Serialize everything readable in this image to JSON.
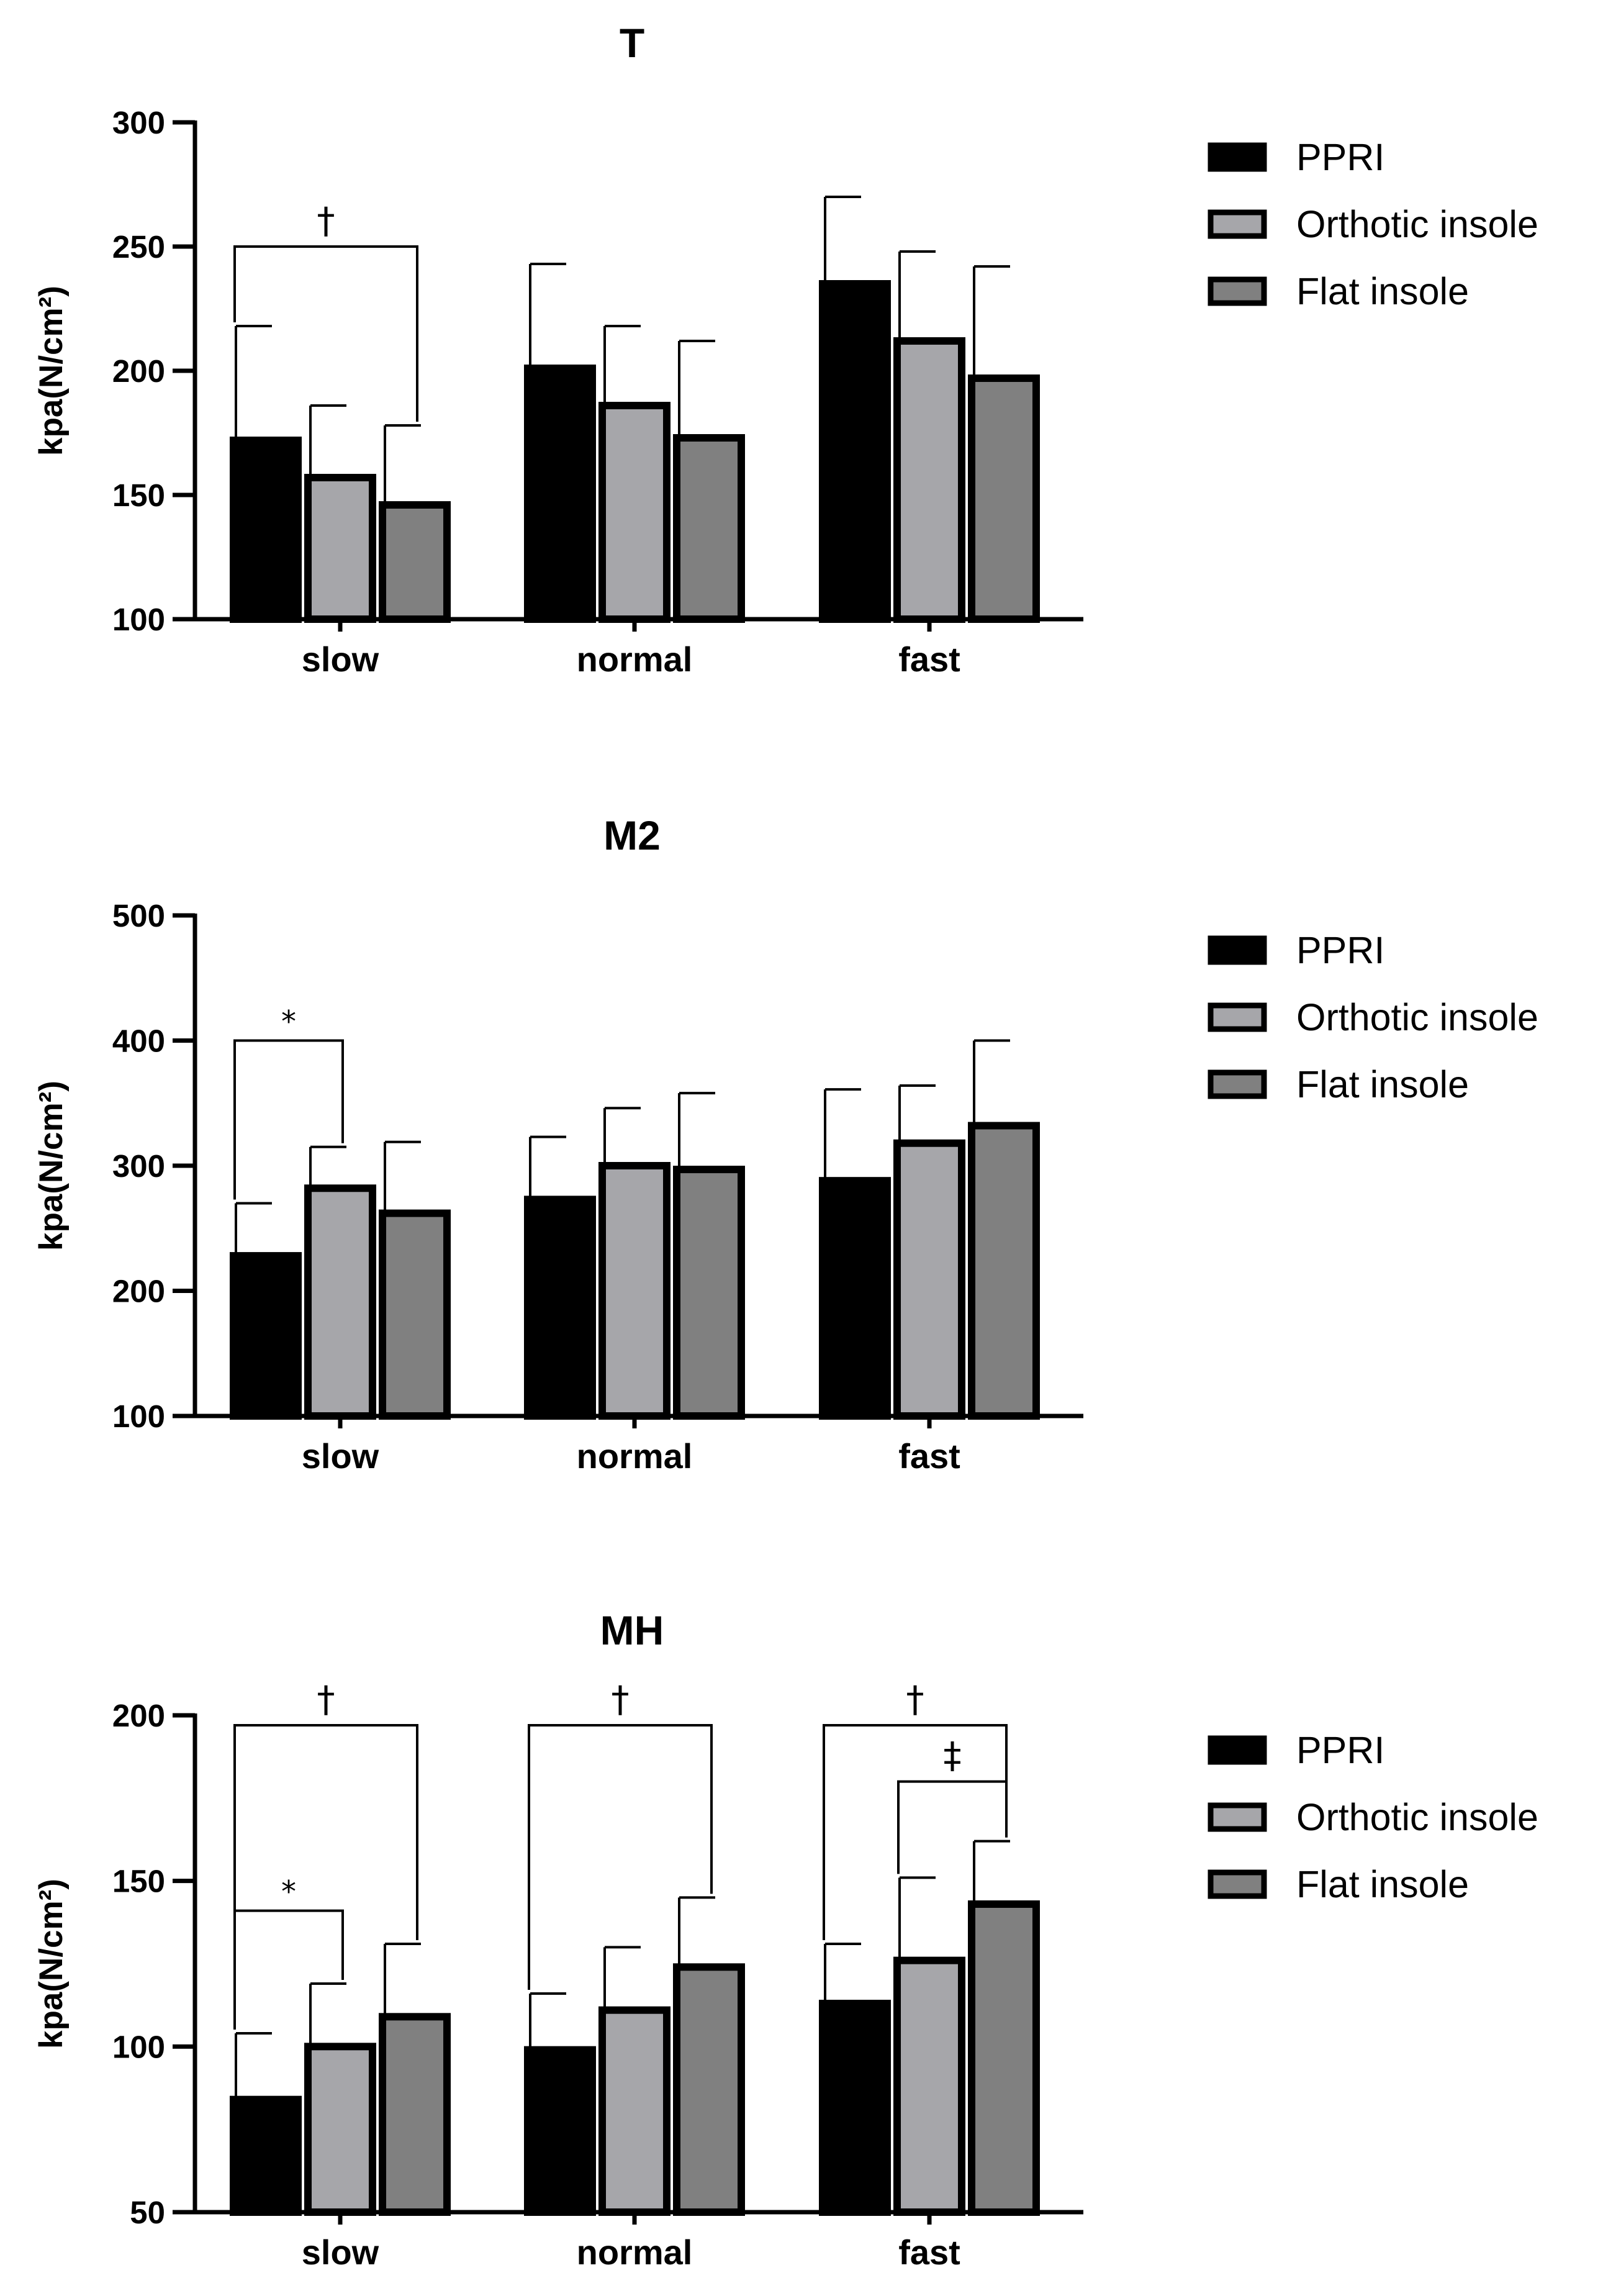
{
  "chart_data": [
    {
      "type": "bar",
      "title": "T",
      "ylabel": "kpa(N/cm²)",
      "xlabel": "",
      "ylim": [
        100,
        300
      ],
      "yticks": [
        100,
        150,
        200,
        250,
        300
      ],
      "categories": [
        "slow",
        "normal",
        "fast"
      ],
      "series": [
        {
          "name": "PPRI",
          "color": "#000000",
          "values": [
            172,
            201,
            235
          ],
          "errors": [
            46,
            42,
            35
          ]
        },
        {
          "name": "Orthotic insole",
          "color": "#a6a6aa",
          "values": [
            157,
            186,
            212
          ],
          "errors": [
            29,
            32,
            36
          ]
        },
        {
          "name": "Flat insole",
          "color": "#808080",
          "values": [
            146,
            173,
            197
          ],
          "errors": [
            32,
            39,
            45
          ]
        }
      ],
      "brackets": [
        {
          "category": 0,
          "from": 0,
          "to": 2,
          "y": 250,
          "label": "†"
        }
      ],
      "legend": "right"
    },
    {
      "type": "bar",
      "title": "M2",
      "ylabel": "kpa(N/cm²)",
      "xlabel": "",
      "ylim": [
        100,
        500
      ],
      "yticks": [
        100,
        200,
        300,
        400,
        500
      ],
      "categories": [
        "slow",
        "normal",
        "fast"
      ],
      "series": [
        {
          "name": "PPRI",
          "color": "#000000",
          "values": [
            228,
            273,
            288
          ],
          "errors": [
            42,
            50,
            73
          ]
        },
        {
          "name": "Orthotic insole",
          "color": "#a6a6aa",
          "values": [
            282,
            300,
            318
          ],
          "errors": [
            33,
            46,
            46
          ]
        },
        {
          "name": "Flat insole",
          "color": "#808080",
          "values": [
            262,
            297,
            332
          ],
          "errors": [
            57,
            61,
            68
          ]
        }
      ],
      "brackets": [
        {
          "category": 0,
          "from": 0,
          "to": 1,
          "y": 400,
          "label": "*"
        }
      ],
      "legend": "right"
    },
    {
      "type": "bar",
      "title": "MH",
      "ylabel": "kpa(N/cm²)",
      "xlabel": "",
      "ylim": [
        50,
        200
      ],
      "yticks": [
        50,
        100,
        150,
        200
      ],
      "categories": [
        "slow",
        "normal",
        "fast"
      ],
      "series": [
        {
          "name": "PPRI",
          "color": "#000000",
          "values": [
            84,
            99,
            113
          ],
          "errors": [
            20,
            17,
            18
          ]
        },
        {
          "name": "Orthotic insole",
          "color": "#a6a6aa",
          "values": [
            100,
            111,
            126
          ],
          "errors": [
            19,
            19,
            25
          ]
        },
        {
          "name": "Flat insole",
          "color": "#808080",
          "values": [
            109,
            124,
            143
          ],
          "errors": [
            22,
            21,
            19
          ]
        }
      ],
      "brackets": [
        {
          "category": 0,
          "from": 0,
          "to": 2,
          "y": 197,
          "label": "†"
        },
        {
          "category": 1,
          "from": 0,
          "to": 2,
          "y": 197,
          "label": "†"
        },
        {
          "category": 2,
          "from": 0,
          "to": 2,
          "y": 197,
          "label": "†"
        },
        {
          "category": 2,
          "from": 1,
          "to": 2,
          "y": 180,
          "label": "‡"
        },
        {
          "category": 0,
          "from": 0,
          "to": 1,
          "y": 141,
          "label": "*"
        }
      ],
      "legend": "right"
    }
  ]
}
